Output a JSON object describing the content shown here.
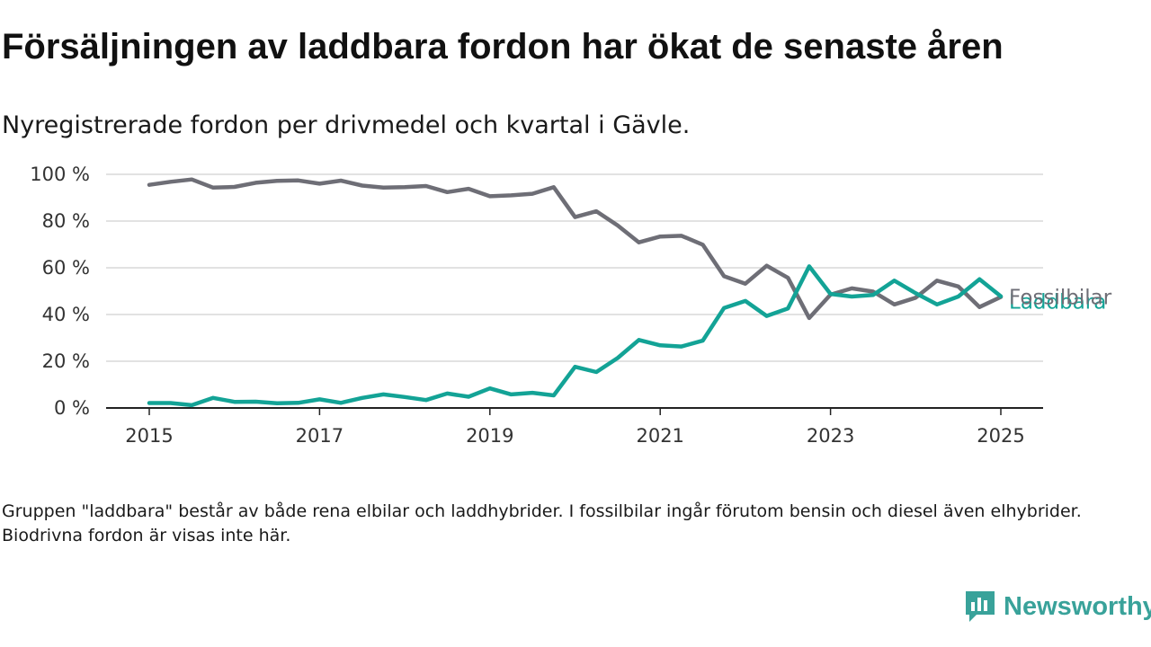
{
  "title": "Försäljningen av laddbara fordon har ökat de senaste åren",
  "subtitle": "Nyregistrerade fordon per drivmedel och kvartal i Gävle.",
  "footnote": "Gruppen \"laddbara\" består av både rena elbilar och laddhybrider. I fossilbilar ingår förutom bensin och diesel även elhybrider. Biodrivna fordon är visas inte här.",
  "brand": {
    "name": "Newsworthy",
    "icon": "newsworthy-logo-icon",
    "color": "#39a29a"
  },
  "chart_data": {
    "type": "line",
    "x_axis": {
      "min": 2015,
      "max": 2025.5,
      "ticks": [
        2015,
        2017,
        2019,
        2021,
        2023,
        2025
      ],
      "tick_labels": [
        "2015",
        "2017",
        "2019",
        "2021",
        "2023",
        "2025"
      ]
    },
    "y_axis": {
      "min": 0,
      "max": 100,
      "ticks": [
        0,
        20,
        40,
        60,
        80,
        100
      ],
      "tick_labels": [
        "0 %",
        "20 %",
        "40 %",
        "60 %",
        "80 %",
        "100 %"
      ]
    },
    "grid": true,
    "x": [
      2015.0,
      2015.25,
      2015.5,
      2015.75,
      2016.0,
      2016.25,
      2016.5,
      2016.75,
      2017.0,
      2017.25,
      2017.5,
      2017.75,
      2018.0,
      2018.25,
      2018.5,
      2018.75,
      2019.0,
      2019.25,
      2019.5,
      2019.75,
      2020.0,
      2020.25,
      2020.5,
      2020.75,
      2021.0,
      2021.25,
      2021.5,
      2021.75,
      2022.0,
      2022.25,
      2022.5,
      2022.75,
      2023.0,
      2023.25,
      2023.5,
      2023.75,
      2024.0,
      2024.25,
      2024.5,
      2024.75,
      2025.0
    ],
    "series": [
      {
        "name": "Fossilbilar",
        "color": "#6e6e76",
        "values": [
          95.5,
          96.8,
          97.8,
          94.3,
          94.6,
          96.4,
          97.2,
          97.4,
          96.0,
          97.3,
          95.2,
          94.3,
          94.5,
          95.0,
          92.4,
          93.8,
          90.6,
          91.0,
          91.7,
          94.5,
          81.7,
          84.2,
          78.1,
          70.9,
          73.4,
          73.7,
          69.9,
          56.4,
          53.2,
          60.9,
          55.7,
          38.5,
          48.5,
          51.2,
          49.8,
          44.3,
          47.2,
          54.5,
          52.0,
          43.2,
          47.5
        ]
      },
      {
        "name": "Laddbara",
        "color": "#13a396",
        "values": [
          2.1,
          2.1,
          1.2,
          4.3,
          2.6,
          2.7,
          2.0,
          2.2,
          3.7,
          2.2,
          4.3,
          5.8,
          4.7,
          3.4,
          6.2,
          4.8,
          8.4,
          5.8,
          6.5,
          5.4,
          17.6,
          15.4,
          21.4,
          29.1,
          26.8,
          26.3,
          28.8,
          42.8,
          45.8,
          39.4,
          42.6,
          60.6,
          48.8,
          47.7,
          48.4,
          54.5,
          49.1,
          44.3,
          47.7,
          55.1,
          47.8
        ]
      }
    ]
  }
}
